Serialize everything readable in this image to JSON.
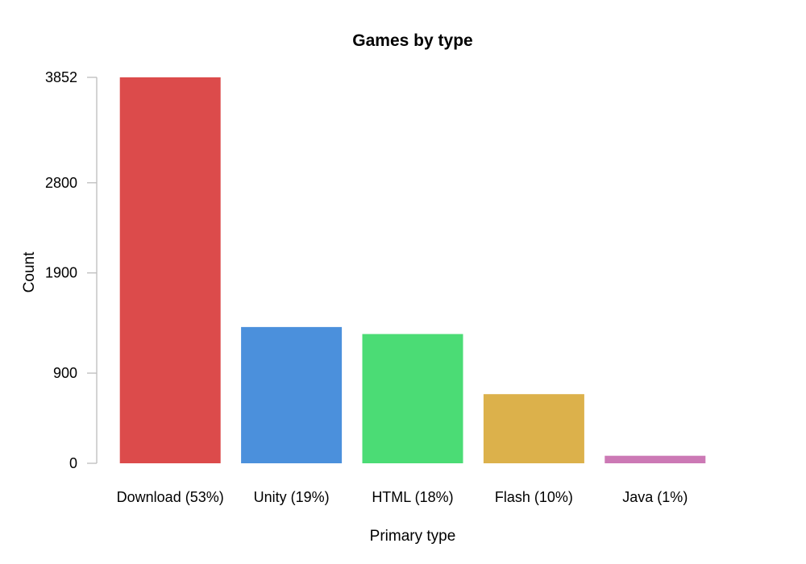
{
  "chart_data": {
    "type": "bar",
    "title": "Games by type",
    "xlabel": "Primary type",
    "ylabel": "Count",
    "categories": [
      "Download (53%)",
      "Unity (19%)",
      "HTML (18%)",
      "Flash (10%)",
      "Java (1%)"
    ],
    "values": [
      3852,
      1360,
      1290,
      690,
      75
    ],
    "colors": [
      "#dc4b4b",
      "#4b90dc",
      "#4bdc75",
      "#dcb14b",
      "#cc79b5"
    ],
    "yticks": [
      0,
      900,
      1900,
      2800,
      3852
    ],
    "ylim": [
      0,
      3852
    ],
    "grid": false,
    "legend": "none"
  }
}
